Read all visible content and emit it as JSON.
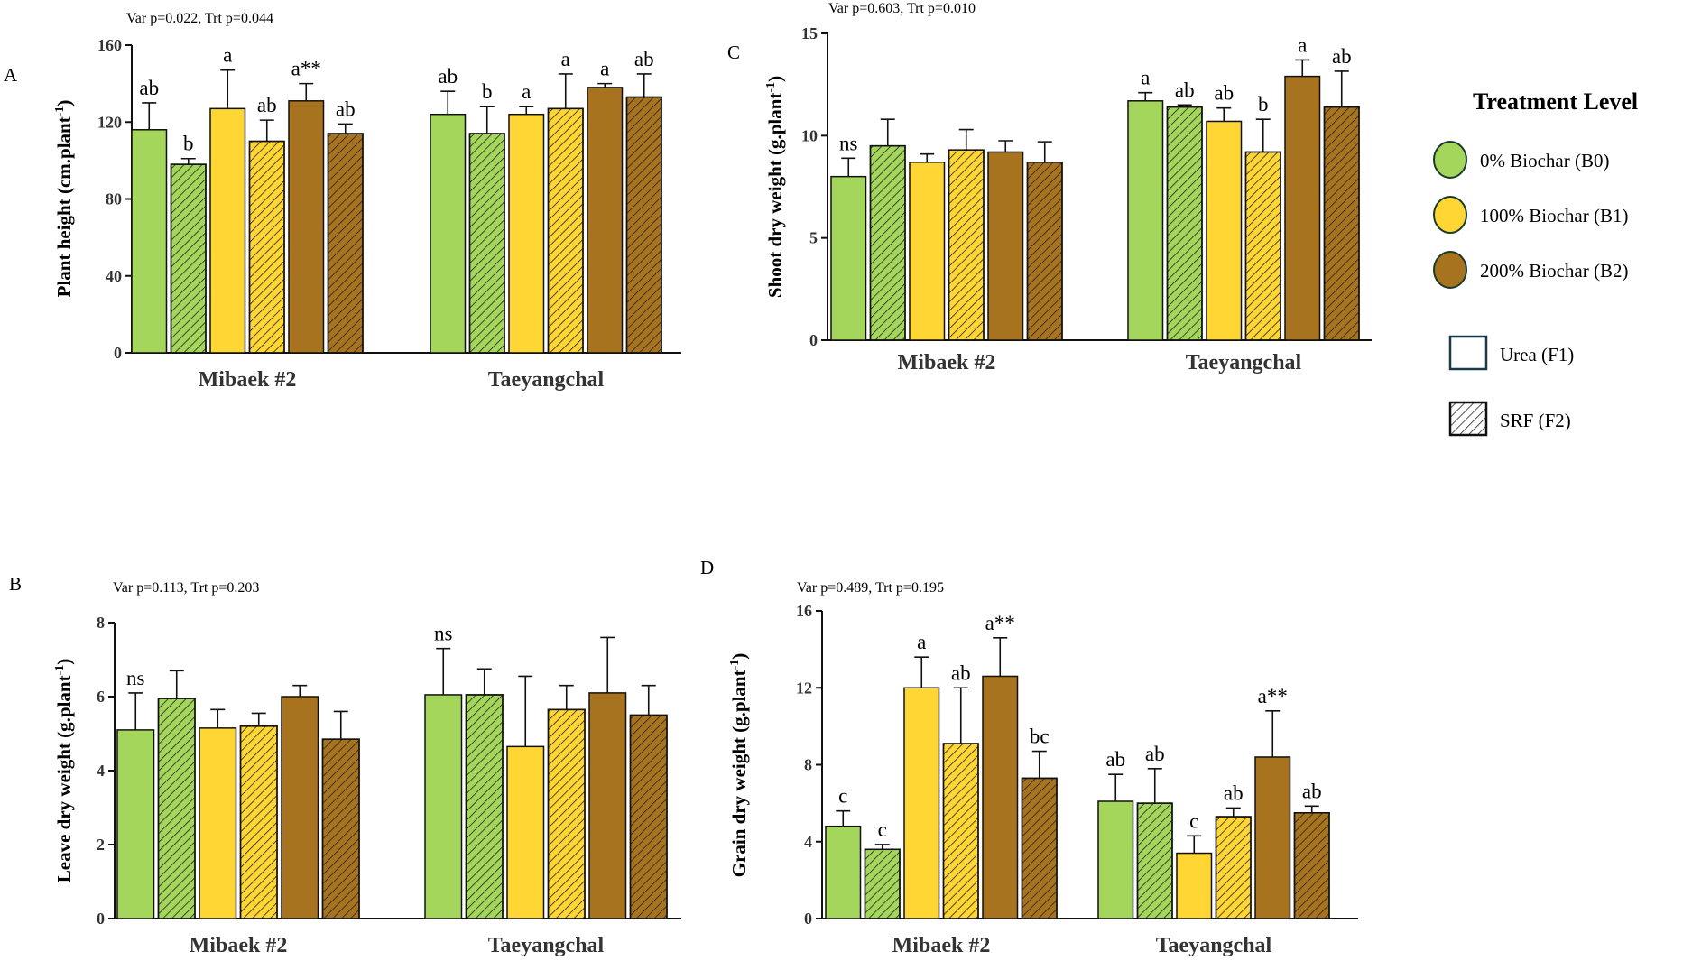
{
  "colors": {
    "B0": "#a3d65a",
    "B1": "#ffd633",
    "B2": "#a8731f",
    "axis": "#111111",
    "bar_border": "#111111"
  },
  "groups": [
    "Mibaek #2",
    "Taeyangchal"
  ],
  "legend": {
    "title": "Treatment Level",
    "items": [
      {
        "key": "B0",
        "label": "0%  Biochar (B0)"
      },
      {
        "key": "B1",
        "label": "100%  Biochar (B1)"
      },
      {
        "key": "B2",
        "label": "200%  Biochar (B2)"
      },
      {
        "key": "F1",
        "label": "Urea (F1)"
      },
      {
        "key": "F2",
        "label": "SRF (F2)"
      }
    ]
  },
  "chart_data": [
    {
      "id": "A",
      "panel_label": "A",
      "type": "bar",
      "stats": "Var p=0.022, Trt p=0.044",
      "ylabel": "Plant height (cm.plant",
      "ylabel_sup": "-1",
      "ylabel_end": ")",
      "ylim": [
        0,
        160
      ],
      "yticks": [
        0,
        40,
        80,
        120,
        160
      ],
      "categories": [
        "Mibaek #2",
        "Taeyangchal"
      ],
      "series": [
        {
          "name": "B0F1",
          "biochar": "B0",
          "fert": "F1",
          "values": [
            116,
            124
          ],
          "errors": [
            14,
            12
          ],
          "labels": [
            "ab",
            "ab"
          ]
        },
        {
          "name": "B0F2",
          "biochar": "B0",
          "fert": "F2",
          "values": [
            98,
            114
          ],
          "errors": [
            3,
            14
          ],
          "labels": [
            "b",
            "b"
          ]
        },
        {
          "name": "B1F1",
          "biochar": "B1",
          "fert": "F1",
          "values": [
            127,
            124
          ],
          "errors": [
            20,
            4
          ],
          "labels": [
            "a",
            "a"
          ]
        },
        {
          "name": "B1F2",
          "biochar": "B1",
          "fert": "F2",
          "values": [
            110,
            127
          ],
          "errors": [
            11,
            18
          ],
          "labels": [
            "ab",
            "a"
          ]
        },
        {
          "name": "B2F1",
          "biochar": "B2",
          "fert": "F1",
          "values": [
            131,
            138
          ],
          "errors": [
            9,
            2
          ],
          "labels": [
            "a**",
            "a"
          ]
        },
        {
          "name": "B2F2",
          "biochar": "B2",
          "fert": "F2",
          "values": [
            114,
            133
          ],
          "errors": [
            5,
            12
          ],
          "labels": [
            "ab",
            "ab"
          ]
        }
      ]
    },
    {
      "id": "B",
      "panel_label": "B",
      "type": "bar",
      "stats": "Var p=0.113, Trt p=0.203",
      "ylabel": "Leave dry weight (g.plant",
      "ylabel_sup": "-1",
      "ylabel_end": ")",
      "ylim": [
        0,
        8
      ],
      "yticks": [
        0,
        2,
        4,
        6,
        8
      ],
      "categories": [
        "Mibaek #2",
        "Taeyangchal"
      ],
      "series": [
        {
          "name": "B0F1",
          "biochar": "B0",
          "fert": "F1",
          "values": [
            5.1,
            6.05
          ],
          "errors": [
            1.0,
            1.25
          ],
          "labels": [
            "ns",
            "ns"
          ]
        },
        {
          "name": "B0F2",
          "biochar": "B0",
          "fert": "F2",
          "values": [
            5.95,
            6.05
          ],
          "errors": [
            0.75,
            0.7
          ],
          "labels": [
            "",
            ""
          ]
        },
        {
          "name": "B1F1",
          "biochar": "B1",
          "fert": "F1",
          "values": [
            5.15,
            4.65
          ],
          "errors": [
            0.5,
            1.9
          ],
          "labels": [
            "",
            ""
          ]
        },
        {
          "name": "B1F2",
          "biochar": "B1",
          "fert": "F2",
          "values": [
            5.2,
            5.65
          ],
          "errors": [
            0.35,
            0.65
          ],
          "labels": [
            "",
            ""
          ]
        },
        {
          "name": "B2F1",
          "biochar": "B2",
          "fert": "F1",
          "values": [
            6.0,
            6.1
          ],
          "errors": [
            0.3,
            1.5
          ],
          "labels": [
            "",
            ""
          ]
        },
        {
          "name": "B2F2",
          "biochar": "B2",
          "fert": "F2",
          "values": [
            4.85,
            5.5
          ],
          "errors": [
            0.75,
            0.8
          ],
          "labels": [
            "",
            ""
          ]
        }
      ]
    },
    {
      "id": "C",
      "panel_label": "C",
      "type": "bar",
      "stats": "Var p=0.603, Trt p=0.010",
      "ylabel": "Shoot dry weight (g.plant",
      "ylabel_sup": "-1",
      "ylabel_end": ")",
      "ylim": [
        0,
        15
      ],
      "yticks": [
        0,
        5,
        10,
        15
      ],
      "categories": [
        "Mibaek #2",
        "Taeyangchal"
      ],
      "series": [
        {
          "name": "B0F1",
          "biochar": "B0",
          "fert": "F1",
          "values": [
            8.0,
            11.7
          ],
          "errors": [
            0.9,
            0.4
          ],
          "labels": [
            "ns",
            "a"
          ]
        },
        {
          "name": "B0F2",
          "biochar": "B0",
          "fert": "F2",
          "values": [
            9.5,
            11.4
          ],
          "errors": [
            1.3,
            0.1
          ],
          "labels": [
            "",
            "ab"
          ]
        },
        {
          "name": "B1F1",
          "biochar": "B1",
          "fert": "F1",
          "values": [
            8.7,
            10.7
          ],
          "errors": [
            0.4,
            0.65
          ],
          "labels": [
            "",
            "ab"
          ]
        },
        {
          "name": "B1F2",
          "biochar": "B1",
          "fert": "F2",
          "values": [
            9.3,
            9.2
          ],
          "errors": [
            1.0,
            1.6
          ],
          "labels": [
            "",
            "b"
          ]
        },
        {
          "name": "B2F1",
          "biochar": "B2",
          "fert": "F1",
          "values": [
            9.2,
            12.9
          ],
          "errors": [
            0.55,
            0.8
          ],
          "labels": [
            "",
            "a"
          ]
        },
        {
          "name": "B2F2",
          "biochar": "B2",
          "fert": "F2",
          "values": [
            8.7,
            11.4
          ],
          "errors": [
            1.0,
            1.75
          ],
          "labels": [
            "",
            "ab"
          ]
        }
      ]
    },
    {
      "id": "D",
      "panel_label": "D",
      "type": "bar",
      "stats": "Var p=0.489, Trt p=0.195",
      "ylabel": "Grain  dry weight (g.plant",
      "ylabel_sup": "-1",
      "ylabel_end": ")",
      "ylim": [
        0,
        16
      ],
      "yticks": [
        0,
        4,
        8,
        12,
        16
      ],
      "categories": [
        "Mibaek #2",
        "Taeyangchal"
      ],
      "series": [
        {
          "name": "B0F1",
          "biochar": "B0",
          "fert": "F1",
          "values": [
            4.8,
            6.1
          ],
          "errors": [
            0.8,
            1.4
          ],
          "labels": [
            "c",
            "ab"
          ]
        },
        {
          "name": "B0F2",
          "biochar": "B0",
          "fert": "F2",
          "values": [
            3.6,
            6.0
          ],
          "errors": [
            0.25,
            1.8
          ],
          "labels": [
            "c",
            "ab"
          ]
        },
        {
          "name": "B1F1",
          "biochar": "B1",
          "fert": "F1",
          "values": [
            12.0,
            3.4
          ],
          "errors": [
            1.6,
            0.9
          ],
          "labels": [
            "a",
            "c"
          ]
        },
        {
          "name": "B1F2",
          "biochar": "B1",
          "fert": "F2",
          "values": [
            9.1,
            5.3
          ],
          "errors": [
            2.9,
            0.45
          ],
          "labels": [
            "ab",
            "ab"
          ]
        },
        {
          "name": "B2F1",
          "biochar": "B2",
          "fert": "F1",
          "values": [
            12.6,
            8.4
          ],
          "errors": [
            2.0,
            2.4
          ],
          "labels": [
            "a**",
            "a**"
          ]
        },
        {
          "name": "B2F2",
          "biochar": "B2",
          "fert": "F2",
          "values": [
            7.3,
            5.5
          ],
          "errors": [
            1.4,
            0.35
          ],
          "labels": [
            "bc",
            "ab"
          ]
        }
      ]
    }
  ]
}
